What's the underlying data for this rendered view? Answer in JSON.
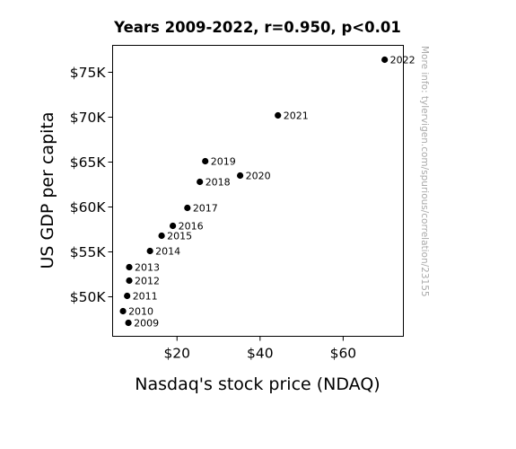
{
  "chart_data": {
    "type": "scatter",
    "title": "Years 2009-2022, r=0.950, p<0.01",
    "xlabel": "Nasdaq's stock price (NDAQ)",
    "ylabel": "US GDP per capita",
    "xlim": [
      4.5,
      74.5
    ],
    "ylim": [
      45600,
      78000
    ],
    "xticks": [
      20,
      40,
      60
    ],
    "xtick_labels": [
      "$20",
      "$40",
      "$60"
    ],
    "yticks": [
      50000,
      55000,
      60000,
      65000,
      70000,
      75000
    ],
    "ytick_labels": [
      "$50K",
      "$55K",
      "$60K",
      "$65K",
      "$70K",
      "$75K"
    ],
    "grid": false,
    "legend": false,
    "marker_color": "#000000",
    "points": [
      {
        "label": "2009",
        "x": 8.3,
        "y": 47100
      },
      {
        "label": "2010",
        "x": 7.0,
        "y": 48400
      },
      {
        "label": "2011",
        "x": 8.0,
        "y": 50100
      },
      {
        "label": "2012",
        "x": 8.5,
        "y": 51800
      },
      {
        "label": "2013",
        "x": 8.5,
        "y": 53300
      },
      {
        "label": "2014",
        "x": 13.5,
        "y": 55100
      },
      {
        "label": "2015",
        "x": 16.3,
        "y": 56800
      },
      {
        "label": "2016",
        "x": 19.0,
        "y": 57900
      },
      {
        "label": "2017",
        "x": 22.5,
        "y": 59900
      },
      {
        "label": "2018",
        "x": 25.5,
        "y": 62800
      },
      {
        "label": "2019",
        "x": 26.8,
        "y": 65100
      },
      {
        "label": "2020",
        "x": 35.2,
        "y": 63500
      },
      {
        "label": "2021",
        "x": 44.3,
        "y": 70200
      },
      {
        "label": "2022",
        "x": 70.0,
        "y": 76400
      }
    ],
    "watermark": "More info: tylervigen.com/spurious/correlation/23155"
  }
}
